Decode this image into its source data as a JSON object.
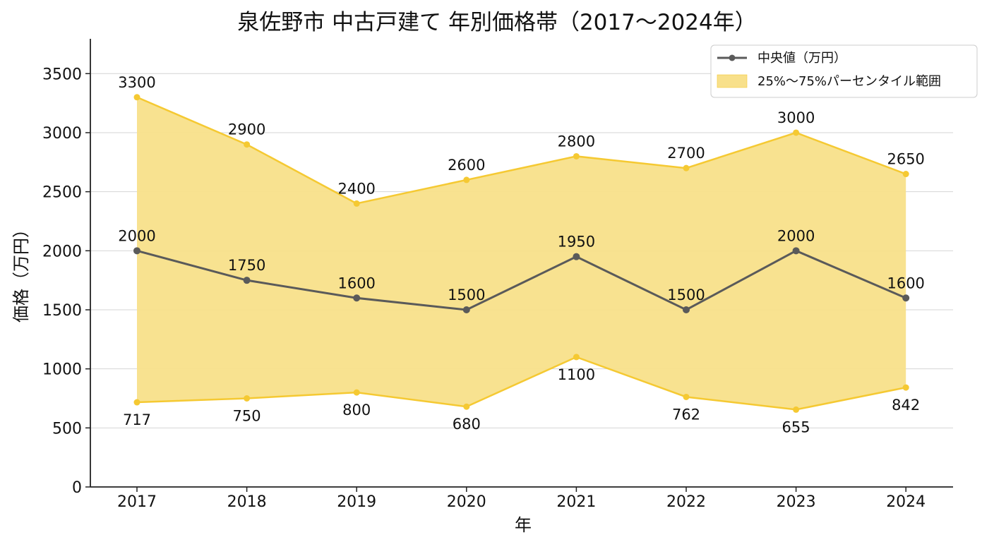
{
  "chart_data": {
    "type": "line",
    "title": "泉佐野市 中古戸建て 年別価格帯（2017〜2024年）",
    "xlabel": "年",
    "ylabel": "価格（万円）",
    "categories": [
      "2017",
      "2018",
      "2019",
      "2020",
      "2021",
      "2022",
      "2023",
      "2024"
    ],
    "ylim": [
      0,
      3800
    ],
    "yticks": [
      0,
      500,
      1000,
      1500,
      2000,
      2500,
      3000,
      3500
    ],
    "grid": "horizontal",
    "legend_position": "top-right",
    "series": [
      {
        "name": "中央値（万円）",
        "kind": "line",
        "color": "#5a5a5a",
        "values": [
          2000,
          1750,
          1600,
          1500,
          1950,
          1500,
          2000,
          1600
        ]
      },
      {
        "name": "25%〜75%パーセンタイル範囲",
        "kind": "band",
        "color": "#f5c932",
        "fill_color": "#f8e08a",
        "upper": [
          3300,
          2900,
          2400,
          2600,
          2800,
          2700,
          3000,
          2650
        ],
        "lower": [
          717,
          750,
          800,
          680,
          1100,
          762,
          655,
          842
        ]
      }
    ]
  }
}
